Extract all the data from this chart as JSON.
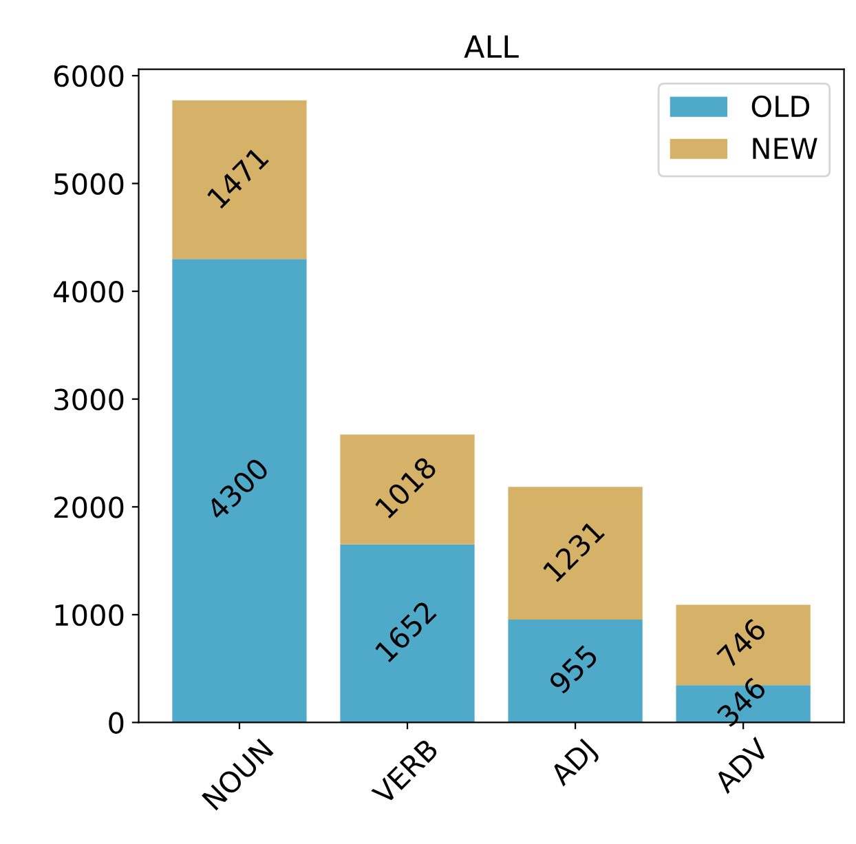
{
  "chart_data": {
    "type": "bar",
    "title": "ALL",
    "stacked": true,
    "categories": [
      "NOUN",
      "VERB",
      "ADJ",
      "ADV"
    ],
    "series": [
      {
        "name": "OLD",
        "color": "#4fa9c9",
        "values": [
          4300,
          1652,
          955,
          346
        ]
      },
      {
        "name": "NEW",
        "color": "#d6b168",
        "values": [
          1471,
          1018,
          1231,
          746
        ]
      }
    ],
    "ylim": [
      0,
      6060
    ],
    "yticks": [
      0,
      1000,
      2000,
      3000,
      4000,
      5000,
      6000
    ],
    "data_labels": true,
    "legend": "top right",
    "grid": false
  }
}
